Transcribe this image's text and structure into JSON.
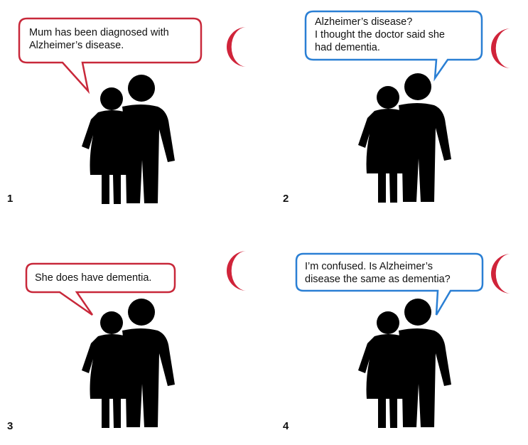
{
  "panels": [
    {
      "number": "1",
      "speaker": "red",
      "text": "Mum has been diagnosed with\nAlzheimer’s disease."
    },
    {
      "number": "2",
      "speaker": "blue",
      "text": "Alzheimer’s disease?\nI thought the doctor said she\nhad dementia."
    },
    {
      "number": "3",
      "speaker": "red",
      "text": "She does have dementia."
    },
    {
      "number": "4",
      "speaker": "blue",
      "text": "I’m confused. Is Alzheimer’s\ndisease the same as dementia?"
    }
  ],
  "colors": {
    "red": "#c8283a",
    "blue": "#2a7fd4",
    "figure": "#000000",
    "logo": "#d0243a"
  },
  "icons": {
    "figures": "couple-figure-icon",
    "logo": "crescent-logo-icon"
  }
}
